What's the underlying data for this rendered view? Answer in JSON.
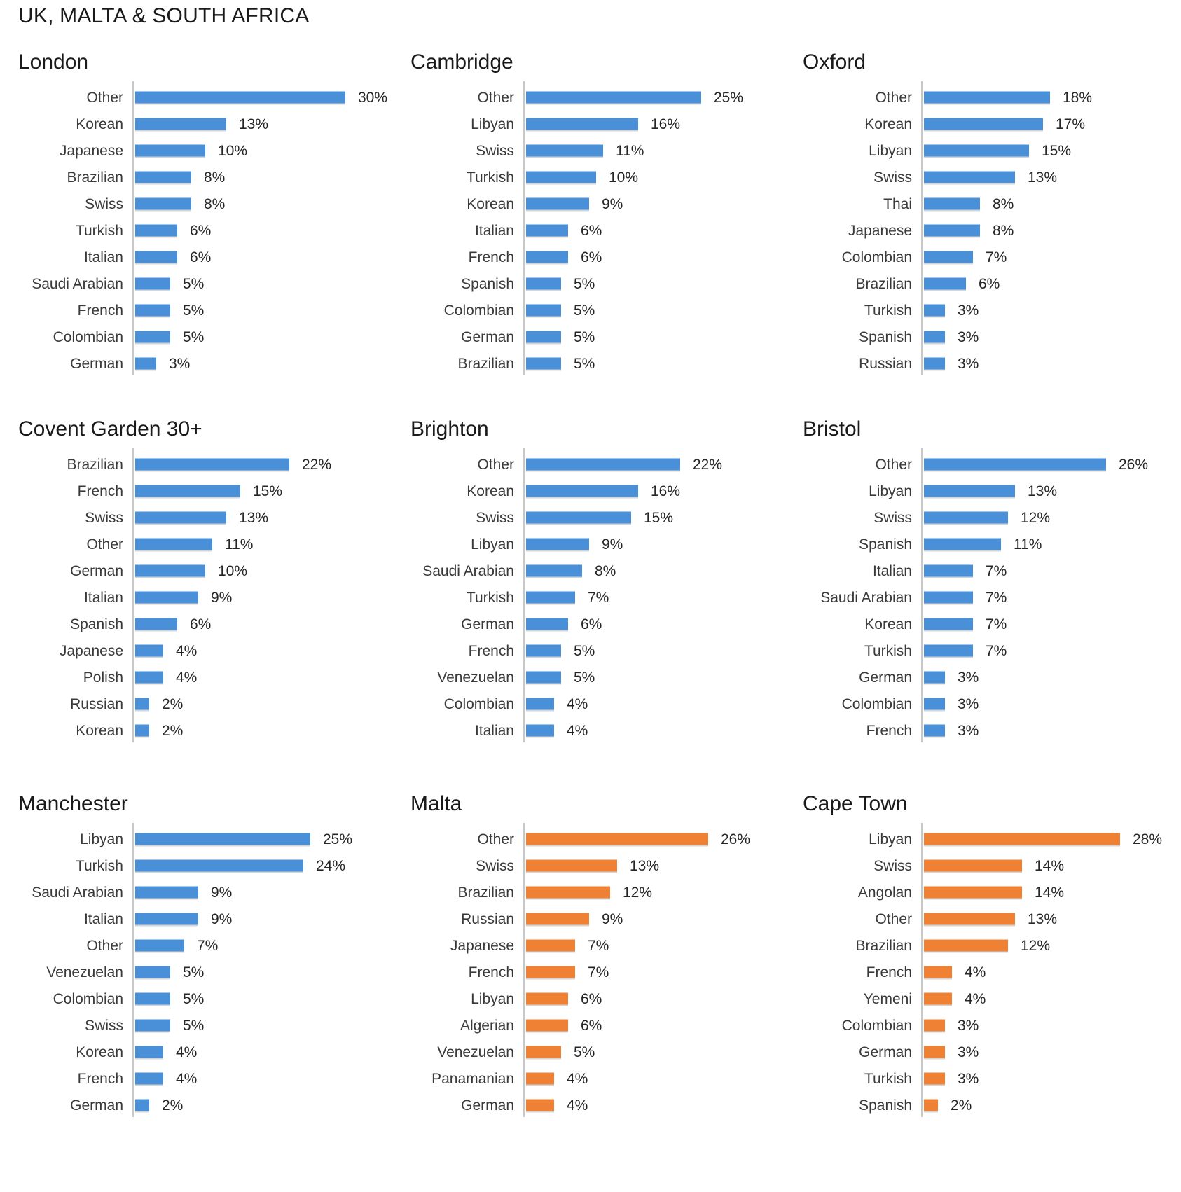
{
  "page": {
    "title": "UK, MALTA & SOUTH AFRICA"
  },
  "colors": {
    "uk": "#4a90d8",
    "international": "#ee8133",
    "axis": "#c8c8c8"
  },
  "chart_data": [
    {
      "type": "bar",
      "orientation": "horizontal",
      "title": "London",
      "color": "#4a90d8",
      "categories": [
        "Other",
        "Korean",
        "Japanese",
        "Brazilian",
        "Swiss",
        "Turkish",
        "Italian",
        "Saudi Arabian",
        "French",
        "Colombian",
        "German"
      ],
      "values": [
        30,
        13,
        10,
        8,
        8,
        6,
        6,
        5,
        5,
        5,
        3
      ],
      "labels": [
        "30%",
        "13%",
        "10%",
        "8%",
        "8%",
        "6%",
        "6%",
        "5%",
        "5%",
        "5%",
        "3%"
      ]
    },
    {
      "type": "bar",
      "orientation": "horizontal",
      "title": "Cambridge",
      "color": "#4a90d8",
      "categories": [
        "Other",
        "Libyan",
        "Swiss",
        "Turkish",
        "Korean",
        "Italian",
        "French",
        "Spanish",
        "Colombian",
        "German",
        "Brazilian"
      ],
      "values": [
        25,
        16,
        11,
        10,
        9,
        6,
        6,
        5,
        5,
        5,
        5
      ],
      "labels": [
        "25%",
        "16%",
        "11%",
        "10%",
        "9%",
        "6%",
        "6%",
        "5%",
        "5%",
        "5%",
        "5%"
      ]
    },
    {
      "type": "bar",
      "orientation": "horizontal",
      "title": "Oxford",
      "color": "#4a90d8",
      "categories": [
        "Other",
        "Korean",
        "Libyan",
        "Swiss",
        "Thai",
        "Japanese",
        "Colombian",
        "Brazilian",
        "Turkish",
        "Spanish",
        "Russian"
      ],
      "values": [
        18,
        17,
        15,
        13,
        8,
        8,
        7,
        6,
        3,
        3,
        3
      ],
      "labels": [
        "18%",
        "17%",
        "15%",
        "13%",
        "8%",
        "8%",
        "7%",
        "6%",
        "3%",
        "3%",
        "3%"
      ]
    },
    {
      "type": "bar",
      "orientation": "horizontal",
      "title": "Covent Garden 30+",
      "color": "#4a90d8",
      "categories": [
        "Brazilian",
        "French",
        "Swiss",
        "Other",
        "German",
        "Italian",
        "Spanish",
        "Japanese",
        "Polish",
        "Russian",
        "Korean"
      ],
      "values": [
        22,
        15,
        13,
        11,
        10,
        9,
        6,
        4,
        4,
        2,
        2
      ],
      "labels": [
        "22%",
        "15%",
        "13%",
        "11%",
        "10%",
        "9%",
        "6%",
        "4%",
        "4%",
        "2%",
        "2%"
      ]
    },
    {
      "type": "bar",
      "orientation": "horizontal",
      "title": "Brighton",
      "color": "#4a90d8",
      "categories": [
        "Other",
        "Korean",
        "Swiss",
        "Libyan",
        "Saudi Arabian",
        "Turkish",
        "German",
        "French",
        "Venezuelan",
        "Colombian",
        "Italian"
      ],
      "values": [
        22,
        16,
        15,
        9,
        8,
        7,
        6,
        5,
        5,
        4,
        4
      ],
      "labels": [
        "22%",
        "16%",
        "15%",
        "9%",
        "8%",
        "7%",
        "6%",
        "5%",
        "5%",
        "4%",
        "4%"
      ]
    },
    {
      "type": "bar",
      "orientation": "horizontal",
      "title": "Bristol",
      "color": "#4a90d8",
      "categories": [
        "Other",
        "Libyan",
        "Swiss",
        "Spanish",
        "Italian",
        "Saudi Arabian",
        "Korean",
        "Turkish",
        "German",
        "Colombian",
        "French"
      ],
      "values": [
        26,
        13,
        12,
        11,
        7,
        7,
        7,
        7,
        3,
        3,
        3
      ],
      "labels": [
        "26%",
        "13%",
        "12%",
        "11%",
        "7%",
        "7%",
        "7%",
        "7%",
        "3%",
        "3%",
        "3%"
      ]
    },
    {
      "type": "bar",
      "orientation": "horizontal",
      "title": "Manchester",
      "color": "#4a90d8",
      "categories": [
        "Libyan",
        "Turkish",
        "Saudi Arabian",
        "Italian",
        "Other",
        "Venezuelan",
        "Colombian",
        "Swiss",
        "Korean",
        "French",
        "German"
      ],
      "values": [
        25,
        24,
        9,
        9,
        7,
        5,
        5,
        5,
        4,
        4,
        2
      ],
      "labels": [
        "25%",
        "24%",
        "9%",
        "9%",
        "7%",
        "5%",
        "5%",
        "5%",
        "4%",
        "4%",
        "2%"
      ]
    },
    {
      "type": "bar",
      "orientation": "horizontal",
      "title": "Malta",
      "color": "#ee8133",
      "categories": [
        "Other",
        "Swiss",
        "Brazilian",
        "Russian",
        "Japanese",
        "French",
        "Libyan",
        "Algerian",
        "Venezuelan",
        "Panamanian",
        "German"
      ],
      "values": [
        26,
        13,
        12,
        9,
        7,
        7,
        6,
        6,
        5,
        4,
        4
      ],
      "labels": [
        "26%",
        "13%",
        "12%",
        "9%",
        "7%",
        "7%",
        "6%",
        "6%",
        "5%",
        "4%",
        "4%"
      ]
    },
    {
      "type": "bar",
      "orientation": "horizontal",
      "title": "Cape Town",
      "color": "#ee8133",
      "categories": [
        "Libyan",
        "Swiss",
        "Angolan",
        "Other",
        "Brazilian",
        "French",
        "Yemeni",
        "Colombian",
        "German",
        "Turkish",
        "Spanish"
      ],
      "values": [
        28,
        14,
        14,
        13,
        12,
        4,
        4,
        3,
        3,
        3,
        2
      ],
      "labels": [
        "28%",
        "14%",
        "14%",
        "13%",
        "12%",
        "4%",
        "4%",
        "3%",
        "3%",
        "3%",
        "2%"
      ]
    }
  ]
}
